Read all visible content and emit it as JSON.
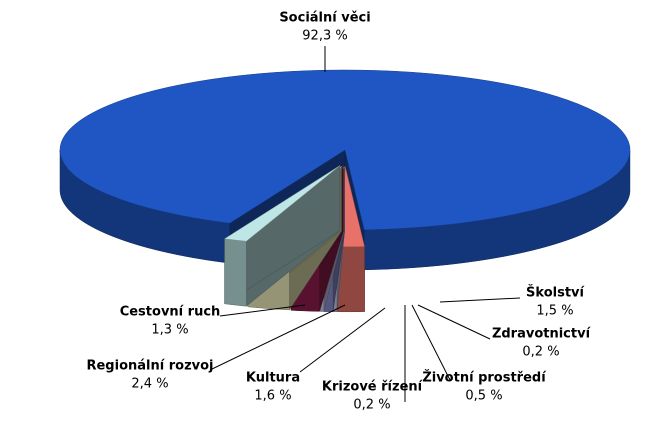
{
  "chart_data": {
    "type": "pie3d",
    "categories": [
      "Sociální věci",
      "Školství",
      "Zdravotnictví",
      "Životní prostředí",
      "Krizové řízení",
      "Kultura",
      "Regionální rozvoj",
      "Cestovní ruch"
    ],
    "values": [
      92.3,
      1.5,
      0.2,
      0.5,
      0.2,
      1.6,
      2.4,
      1.3
    ],
    "value_labels": [
      "92,3 %",
      "1,5 %",
      "0,2 %",
      "0,5 %",
      "0,2 %",
      "1,6 %",
      "2,4 %",
      "1,3 %"
    ],
    "colors": [
      "#1f56c4",
      "#e8726a",
      "#c9c9ee",
      "#8a8ccc",
      "#cfcdf2",
      "#8e1d4e",
      "#f1efbd",
      "#bfe6e6"
    ]
  }
}
